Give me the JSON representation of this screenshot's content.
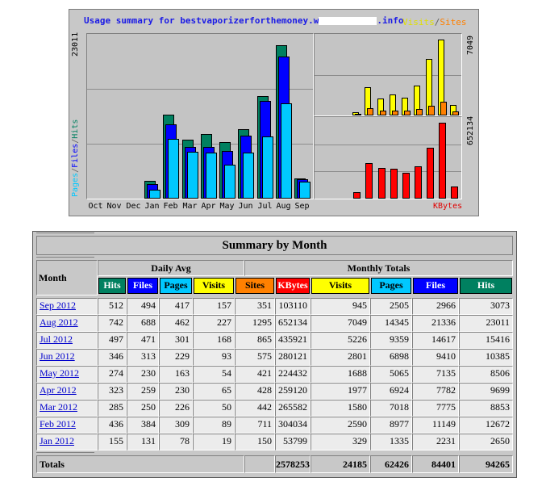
{
  "graph": {
    "title_prefix": "Usage summary for bestvaporizerforthemoney.w",
    "title_suffix": ".info",
    "legend_visits": "Visits",
    "legend_sep": "/",
    "legend_sites": "Sites",
    "ymax_hits": "23011",
    "ylabel_pages": "Pages",
    "ylabel_sep1": "/",
    "ylabel_files": "Files",
    "ylabel_sep2": "/",
    "ylabel_hits": "Hits",
    "ymax_visits": "7049",
    "ymax_kbytes": "652134",
    "kbytes_label": "KBytes",
    "months": [
      "Oct",
      "Nov",
      "Dec",
      "Jan",
      "Feb",
      "Mar",
      "Apr",
      "May",
      "Jun",
      "Jul",
      "Aug",
      "Sep"
    ],
    "colors": {
      "hits": "#008060",
      "files": "#0000ff",
      "pages": "#00c8ff",
      "visits": "#ffff00",
      "sites": "#ff8000",
      "kbytes": "#ff0000"
    }
  },
  "chart_data": [
    {
      "type": "bar",
      "categories": [
        "Oct",
        "Nov",
        "Dec",
        "Jan",
        "Feb",
        "Mar",
        "Apr",
        "May",
        "Jun",
        "Jul",
        "Aug",
        "Sep"
      ],
      "series": [
        {
          "name": "Hits",
          "values": [
            0,
            0,
            0,
            2650,
            12672,
            8853,
            9699,
            8506,
            10385,
            15416,
            23011,
            3073
          ]
        },
        {
          "name": "Files",
          "values": [
            0,
            0,
            0,
            2231,
            11149,
            7775,
            7782,
            7135,
            9410,
            14617,
            21336,
            2966
          ]
        },
        {
          "name": "Pages",
          "values": [
            0,
            0,
            0,
            1335,
            8977,
            7018,
            6924,
            5065,
            6898,
            9359,
            14345,
            2505
          ]
        }
      ],
      "ylim": [
        0,
        23011
      ]
    },
    {
      "type": "bar",
      "categories": [
        "Oct",
        "Nov",
        "Dec",
        "Jan",
        "Feb",
        "Mar",
        "Apr",
        "May",
        "Jun",
        "Jul",
        "Aug",
        "Sep"
      ],
      "series": [
        {
          "name": "Visits",
          "values": [
            0,
            0,
            0,
            329,
            2590,
            1580,
            1977,
            1688,
            2801,
            5226,
            7049,
            945
          ]
        },
        {
          "name": "Sites",
          "values": [
            0,
            0,
            0,
            150,
            711,
            442,
            428,
            421,
            575,
            865,
            1295,
            351
          ]
        }
      ],
      "ylim": [
        0,
        7049
      ]
    },
    {
      "type": "bar",
      "categories": [
        "Oct",
        "Nov",
        "Dec",
        "Jan",
        "Feb",
        "Mar",
        "Apr",
        "May",
        "Jun",
        "Jul",
        "Aug",
        "Sep"
      ],
      "series": [
        {
          "name": "KBytes",
          "values": [
            0,
            0,
            0,
            53799,
            304034,
            265582,
            259120,
            224432,
            280121,
            435921,
            652134,
            103110
          ]
        }
      ],
      "ylim": [
        0,
        652134
      ]
    }
  ],
  "summary": {
    "title": "Summary by Month",
    "month_header": "Month",
    "daily_avg_header": "Daily Avg",
    "monthly_totals_header": "Monthly Totals",
    "columns": [
      {
        "label": "Hits",
        "bg": "#008060",
        "fg": "#ffffff"
      },
      {
        "label": "Files",
        "bg": "#0000ff",
        "fg": "#ffffff"
      },
      {
        "label": "Pages",
        "bg": "#00c8ff",
        "fg": "#000000"
      },
      {
        "label": "Visits",
        "bg": "#ffff00",
        "fg": "#000000"
      },
      {
        "label": "Sites",
        "bg": "#ff8000",
        "fg": "#000000"
      },
      {
        "label": "KBytes",
        "bg": "#ff0000",
        "fg": "#ffffff"
      },
      {
        "label": "Visits",
        "bg": "#ffff00",
        "fg": "#000000"
      },
      {
        "label": "Pages",
        "bg": "#00c8ff",
        "fg": "#000000"
      },
      {
        "label": "Files",
        "bg": "#0000ff",
        "fg": "#ffffff"
      },
      {
        "label": "Hits",
        "bg": "#008060",
        "fg": "#ffffff"
      }
    ],
    "rows": [
      {
        "month": "Sep 2012",
        "values": [
          "512",
          "494",
          "417",
          "157",
          "351",
          "103110",
          "945",
          "2505",
          "2966",
          "3073"
        ]
      },
      {
        "month": "Aug 2012",
        "values": [
          "742",
          "688",
          "462",
          "227",
          "1295",
          "652134",
          "7049",
          "14345",
          "21336",
          "23011"
        ]
      },
      {
        "month": "Jul 2012",
        "values": [
          "497",
          "471",
          "301",
          "168",
          "865",
          "435921",
          "5226",
          "9359",
          "14617",
          "15416"
        ]
      },
      {
        "month": "Jun 2012",
        "values": [
          "346",
          "313",
          "229",
          "93",
          "575",
          "280121",
          "2801",
          "6898",
          "9410",
          "10385"
        ]
      },
      {
        "month": "May 2012",
        "values": [
          "274",
          "230",
          "163",
          "54",
          "421",
          "224432",
          "1688",
          "5065",
          "7135",
          "8506"
        ]
      },
      {
        "month": "Apr 2012",
        "values": [
          "323",
          "259",
          "230",
          "65",
          "428",
          "259120",
          "1977",
          "6924",
          "7782",
          "9699"
        ]
      },
      {
        "month": "Mar 2012",
        "values": [
          "285",
          "250",
          "226",
          "50",
          "442",
          "265582",
          "1580",
          "7018",
          "7775",
          "8853"
        ]
      },
      {
        "month": "Feb 2012",
        "values": [
          "436",
          "384",
          "309",
          "89",
          "711",
          "304034",
          "2590",
          "8977",
          "11149",
          "12672"
        ]
      },
      {
        "month": "Jan 2012",
        "values": [
          "155",
          "131",
          "78",
          "19",
          "150",
          "53799",
          "329",
          "1335",
          "2231",
          "2650"
        ]
      }
    ],
    "totals_label": "Totals",
    "totals": [
      "2578253",
      "24185",
      "62426",
      "84401",
      "94265"
    ]
  }
}
